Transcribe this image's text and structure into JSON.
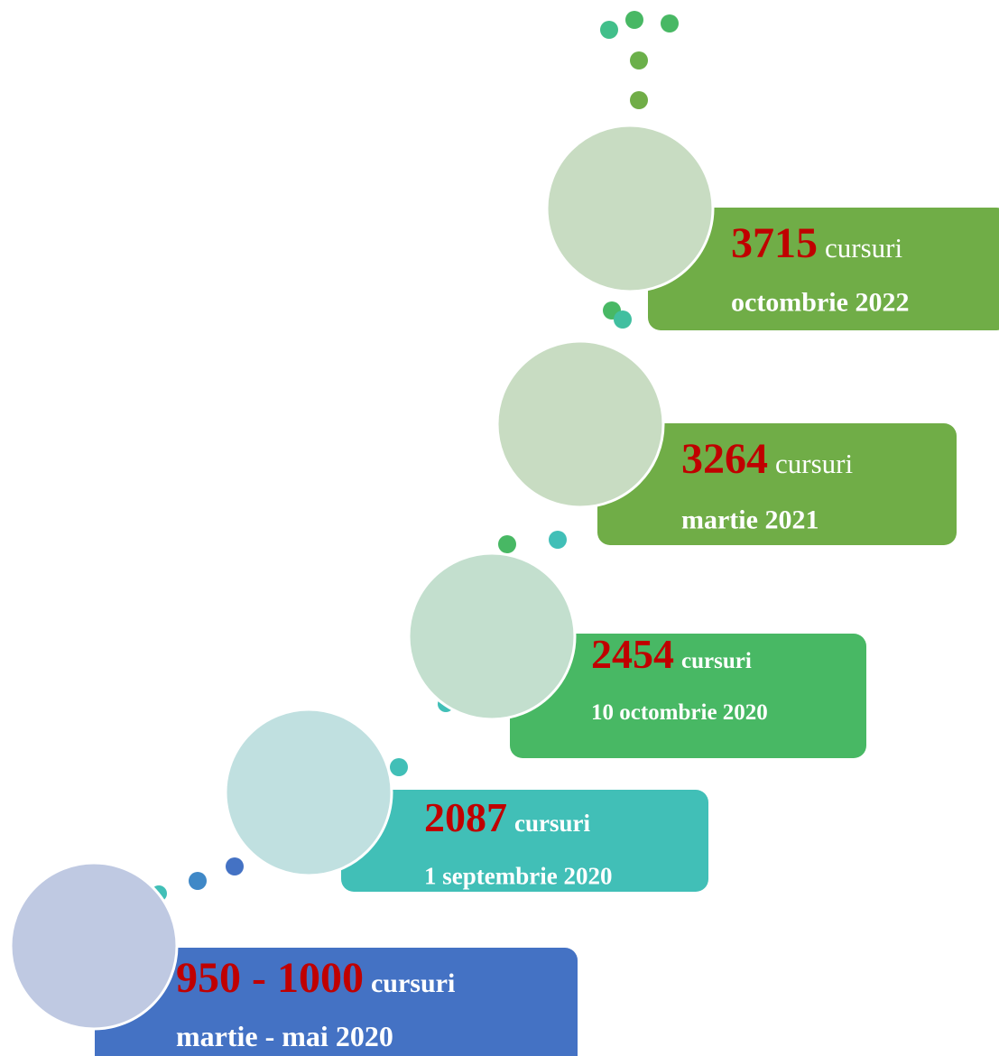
{
  "steps": [
    {
      "number": "950 - 1000",
      "unit": "cursuri",
      "date": "martie - mai 2020"
    },
    {
      "number": "2087",
      "unit": "cursuri",
      "date": "1 septembrie 2020"
    },
    {
      "number": "2454",
      "unit": "cursuri",
      "date": "10 octombrie 2020"
    },
    {
      "number": "3264",
      "unit": "cursuri",
      "date": "martie 2021"
    },
    {
      "number": "3715",
      "unit": "cursuri",
      "date": "octombrie 2022"
    }
  ]
}
